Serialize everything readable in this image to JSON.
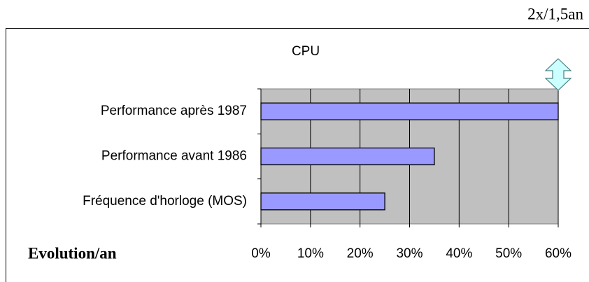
{
  "chart_data": {
    "type": "hbar",
    "title": "CPU",
    "categories": [
      "Performance après 1987",
      "Performance avant 1986",
      "Fréquence d'horloge (MOS)"
    ],
    "values": [
      60,
      35,
      25
    ],
    "color": "#9999ff",
    "xlim": [
      0,
      60
    ],
    "xticks": [
      {
        "value": 0,
        "label": "0%"
      },
      {
        "value": 10,
        "label": "10%"
      },
      {
        "value": 20,
        "label": "20%"
      },
      {
        "value": 30,
        "label": "30%"
      },
      {
        "value": 40,
        "label": "40%"
      },
      {
        "value": 50,
        "label": "50%"
      },
      {
        "value": 60,
        "label": "60%"
      }
    ],
    "grid": true,
    "annotations": [
      "2x/1,5an",
      "Evolution/an"
    ]
  }
}
